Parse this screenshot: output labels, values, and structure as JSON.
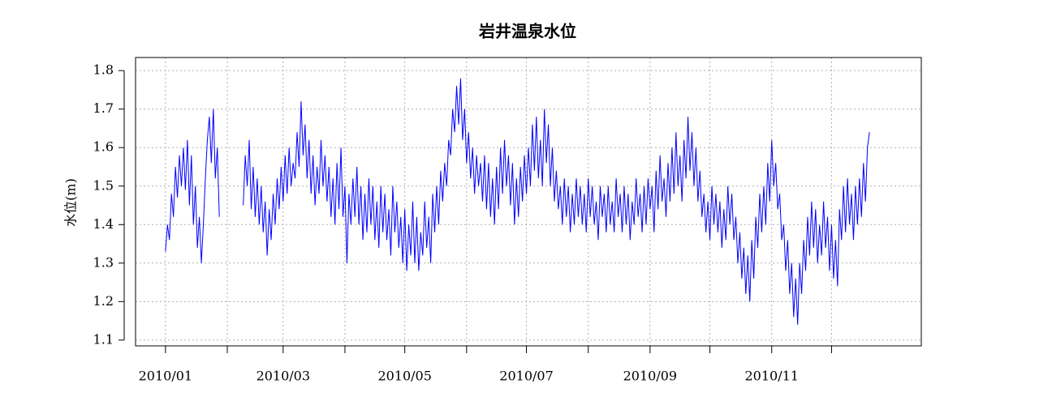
{
  "chart_data": {
    "type": "line",
    "title": "岩井温泉水位",
    "ylabel": "水位(m)",
    "color": "#0000ff",
    "grid": true,
    "categories": [
      "2010/01",
      null,
      null,
      null,
      null,
      null,
      null,
      null,
      null,
      null,
      null,
      null,
      null,
      null,
      null,
      null,
      null,
      null,
      null,
      null,
      null,
      null,
      null,
      null,
      null,
      null,
      null,
      null,
      null,
      null,
      null,
      null,
      null,
      null,
      null,
      null,
      null,
      null,
      null,
      null,
      null,
      null,
      null,
      null,
      null,
      null,
      null,
      null,
      null,
      null,
      null,
      null,
      null,
      null,
      null,
      null,
      null,
      null,
      null,
      "2010/03",
      null,
      null,
      null,
      null,
      null,
      null,
      null,
      null,
      null,
      null,
      null,
      null,
      null,
      null,
      null,
      null,
      null,
      null,
      null,
      null,
      null,
      null,
      null,
      null,
      null,
      null,
      null,
      null,
      null,
      null,
      null,
      null,
      null,
      null,
      null,
      null,
      null,
      null,
      null,
      null,
      null,
      null,
      null,
      null,
      null,
      null,
      null,
      null,
      null,
      null,
      null,
      null,
      null,
      null,
      null,
      null,
      null,
      null,
      null,
      null,
      "2010/05",
      null,
      null,
      null,
      null,
      null,
      null,
      null,
      null,
      null,
      null,
      null,
      null,
      null,
      null,
      null,
      null,
      null,
      null,
      null,
      null,
      null,
      null,
      null,
      null,
      null,
      null,
      null,
      null,
      null,
      null,
      null,
      null,
      null,
      null,
      null,
      null,
      null,
      null,
      null,
      null,
      null,
      null,
      null,
      null,
      null,
      null,
      null,
      null,
      null,
      null,
      null,
      null,
      null,
      null,
      null,
      null,
      null,
      null,
      null,
      null,
      "2010/07",
      null,
      null,
      null,
      null,
      null,
      null,
      null,
      null,
      null,
      null,
      null,
      null,
      null,
      null,
      null,
      null,
      null,
      null,
      null,
      null,
      null,
      null,
      null,
      null,
      null,
      null,
      null,
      null,
      null,
      null,
      null,
      null,
      null,
      null,
      null,
      null,
      null,
      null,
      null,
      null,
      null,
      null,
      null,
      null,
      null,
      null,
      null,
      null,
      null,
      null,
      null,
      null,
      null,
      null,
      null,
      null,
      null,
      null,
      null,
      null,
      null,
      "2010/09",
      null,
      null,
      null,
      null,
      null,
      null,
      null,
      null,
      null,
      null,
      null,
      null,
      null,
      null,
      null,
      null,
      null,
      null,
      null,
      null,
      null,
      null,
      null,
      null,
      null,
      null,
      null,
      null,
      null,
      null,
      null,
      null,
      null,
      null,
      null,
      null,
      null,
      null,
      null,
      null,
      null,
      null,
      null,
      null,
      null,
      null,
      null,
      null,
      null,
      null,
      null,
      null,
      null,
      null,
      null,
      null,
      null,
      null,
      null,
      null,
      "2010/11",
      null,
      null,
      null,
      null,
      null,
      null,
      null,
      null,
      null,
      null,
      null,
      null,
      null,
      null,
      null,
      null,
      null,
      null,
      null,
      null,
      null,
      null,
      null,
      null,
      null,
      null,
      null,
      null,
      null,
      null,
      null,
      null,
      null,
      null,
      null,
      null,
      null,
      null,
      null,
      null,
      null,
      null,
      null,
      null,
      null,
      null,
      null,
      null,
      null
    ],
    "values": [
      1.33,
      1.4,
      1.36,
      1.48,
      1.42,
      1.55,
      1.47,
      1.58,
      1.5,
      1.6,
      1.49,
      1.62,
      1.45,
      1.58,
      1.4,
      1.5,
      1.34,
      1.42,
      1.3,
      1.4,
      1.52,
      1.62,
      1.68,
      1.56,
      1.7,
      1.52,
      1.6,
      1.42,
      null,
      null,
      null,
      null,
      null,
      null,
      null,
      null,
      null,
      null,
      null,
      1.45,
      1.58,
      1.5,
      1.62,
      1.44,
      1.55,
      1.42,
      1.52,
      1.4,
      1.5,
      1.38,
      1.46,
      1.32,
      1.44,
      1.36,
      1.48,
      1.4,
      1.52,
      1.44,
      1.55,
      1.46,
      1.58,
      1.48,
      1.6,
      1.5,
      1.56,
      1.52,
      1.64,
      1.55,
      1.72,
      1.58,
      1.66,
      1.52,
      1.62,
      1.48,
      1.58,
      1.45,
      1.55,
      1.48,
      1.62,
      1.5,
      1.58,
      1.46,
      1.55,
      1.42,
      1.52,
      1.4,
      1.56,
      1.44,
      1.6,
      1.42,
      1.5,
      1.3,
      1.48,
      1.4,
      1.52,
      1.42,
      1.55,
      1.4,
      1.5,
      1.36,
      1.48,
      1.38,
      1.52,
      1.4,
      1.5,
      1.36,
      1.46,
      1.34,
      1.5,
      1.38,
      1.48,
      1.36,
      1.44,
      1.32,
      1.5,
      1.38,
      1.46,
      1.34,
      1.42,
      1.3,
      1.44,
      1.28,
      1.4,
      1.32,
      1.46,
      1.3,
      1.42,
      1.28,
      1.38,
      1.32,
      1.46,
      1.34,
      1.42,
      1.3,
      1.48,
      1.38,
      1.5,
      1.4,
      1.54,
      1.46,
      1.56,
      1.5,
      1.62,
      1.58,
      1.7,
      1.64,
      1.76,
      1.66,
      1.78,
      1.62,
      1.7,
      1.56,
      1.64,
      1.52,
      1.6,
      1.48,
      1.58,
      1.5,
      1.56,
      1.46,
      1.58,
      1.44,
      1.56,
      1.42,
      1.52,
      1.4,
      1.55,
      1.44,
      1.6,
      1.48,
      1.62,
      1.5,
      1.58,
      1.45,
      1.56,
      1.4,
      1.52,
      1.42,
      1.55,
      1.46,
      1.58,
      1.48,
      1.6,
      1.5,
      1.66,
      1.54,
      1.68,
      1.52,
      1.62,
      1.5,
      1.7,
      1.56,
      1.66,
      1.5,
      1.6,
      1.46,
      1.54,
      1.44,
      1.5,
      1.4,
      1.52,
      1.42,
      1.5,
      1.38,
      1.48,
      1.4,
      1.52,
      1.42,
      1.5,
      1.4,
      1.48,
      1.38,
      1.52,
      1.42,
      1.5,
      1.4,
      1.46,
      1.36,
      1.5,
      1.42,
      1.48,
      1.38,
      1.5,
      1.4,
      1.46,
      1.38,
      1.52,
      1.42,
      1.48,
      1.38,
      1.5,
      1.4,
      1.48,
      1.36,
      1.46,
      1.4,
      1.52,
      1.42,
      1.48,
      1.38,
      1.5,
      1.4,
      1.52,
      1.44,
      1.5,
      1.38,
      1.54,
      1.44,
      1.58,
      1.46,
      1.52,
      1.42,
      1.56,
      1.46,
      1.6,
      1.48,
      1.64,
      1.5,
      1.58,
      1.46,
      1.62,
      1.52,
      1.68,
      1.54,
      1.64,
      1.5,
      1.6,
      1.46,
      1.54,
      1.42,
      1.48,
      1.38,
      1.46,
      1.36,
      1.5,
      1.4,
      1.48,
      1.38,
      1.46,
      1.34,
      1.44,
      1.36,
      1.5,
      1.4,
      1.48,
      1.36,
      1.42,
      1.3,
      1.38,
      1.26,
      1.34,
      1.22,
      1.32,
      1.2,
      1.36,
      1.26,
      1.42,
      1.34,
      1.48,
      1.38,
      1.5,
      1.4,
      1.56,
      1.46,
      1.62,
      1.5,
      1.56,
      1.44,
      1.48,
      1.36,
      1.4,
      1.28,
      1.36,
      1.22,
      1.3,
      1.16,
      1.26,
      1.14,
      1.3,
      1.22,
      1.36,
      1.28,
      1.42,
      1.32,
      1.46,
      1.34,
      1.44,
      1.3,
      1.4,
      1.32,
      1.46,
      1.34,
      1.42,
      1.28,
      1.4,
      1.26,
      1.36,
      1.24,
      1.44,
      1.36,
      1.5,
      1.38,
      1.52,
      1.4,
      1.48,
      1.36,
      1.5,
      1.4,
      1.52,
      1.42,
      1.56,
      1.46,
      1.6,
      1.64
    ],
    "xlim": [
      -15,
      379
    ],
    "xticks": [
      0,
      31,
      59,
      90,
      120,
      151,
      181,
      212,
      243,
      273,
      304,
      334
    ],
    "ylim": [
      1.085,
      1.834
    ],
    "yticks": [
      1.1,
      1.2,
      1.3,
      1.4,
      1.5,
      1.6,
      1.7,
      1.8
    ]
  }
}
